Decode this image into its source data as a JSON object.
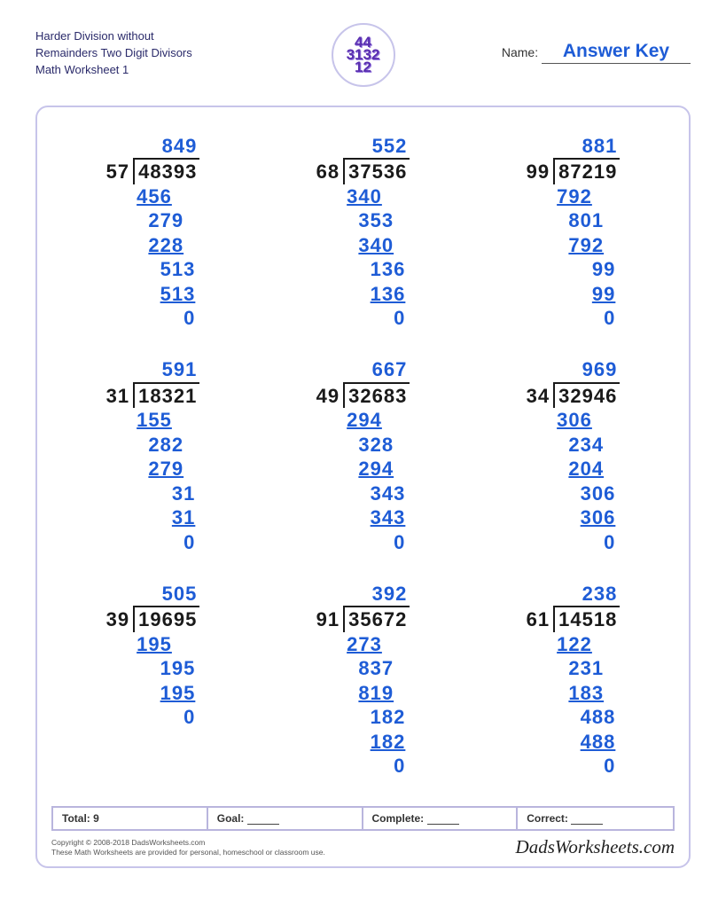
{
  "header": {
    "title_line1": "Harder Division without",
    "title_line2": "Remainders Two Digit Divisors",
    "title_line3": "Math Worksheet 1",
    "name_label": "Name:",
    "name_value": "Answer Key",
    "logo_text": "44\n3132\n12"
  },
  "colors": {
    "quotient": "#1e5cd6",
    "work": "#1e5cd6",
    "dividend": "#1a1a1a",
    "frame_border": "#c7c4ea"
  },
  "typography": {
    "problem_fontsize": 22,
    "problem_fontweight": "bold",
    "header_fontsize": 13
  },
  "problems": [
    {
      "divisor": "57",
      "dividend": "48393",
      "quotient": "849",
      "work": [
        {
          "v": "456",
          "u": true,
          "i": 0
        },
        {
          "v": "279",
          "u": false,
          "i": 1
        },
        {
          "v": "228",
          "u": true,
          "i": 1
        },
        {
          "v": "513",
          "u": false,
          "i": 2
        },
        {
          "v": "513",
          "u": true,
          "i": 2
        },
        {
          "v": "0",
          "u": false,
          "i": 4
        }
      ]
    },
    {
      "divisor": "68",
      "dividend": "37536",
      "quotient": "552",
      "work": [
        {
          "v": "340",
          "u": true,
          "i": 0
        },
        {
          "v": "353",
          "u": false,
          "i": 1
        },
        {
          "v": "340",
          "u": true,
          "i": 1
        },
        {
          "v": "136",
          "u": false,
          "i": 2
        },
        {
          "v": "136",
          "u": true,
          "i": 2
        },
        {
          "v": "0",
          "u": false,
          "i": 4
        }
      ]
    },
    {
      "divisor": "99",
      "dividend": "87219",
      "quotient": "881",
      "work": [
        {
          "v": "792",
          "u": true,
          "i": 0
        },
        {
          "v": "801",
          "u": false,
          "i": 1
        },
        {
          "v": "792",
          "u": true,
          "i": 1
        },
        {
          "v": "99",
          "u": false,
          "i": 3
        },
        {
          "v": "99",
          "u": true,
          "i": 3
        },
        {
          "v": "0",
          "u": false,
          "i": 4
        }
      ]
    },
    {
      "divisor": "31",
      "dividend": "18321",
      "quotient": "591",
      "work": [
        {
          "v": "155",
          "u": true,
          "i": 0
        },
        {
          "v": "282",
          "u": false,
          "i": 1
        },
        {
          "v": "279",
          "u": true,
          "i": 1
        },
        {
          "v": "31",
          "u": false,
          "i": 3
        },
        {
          "v": "31",
          "u": true,
          "i": 3
        },
        {
          "v": "0",
          "u": false,
          "i": 4
        }
      ]
    },
    {
      "divisor": "49",
      "dividend": "32683",
      "quotient": "667",
      "work": [
        {
          "v": "294",
          "u": true,
          "i": 0
        },
        {
          "v": "328",
          "u": false,
          "i": 1
        },
        {
          "v": "294",
          "u": true,
          "i": 1
        },
        {
          "v": "343",
          "u": false,
          "i": 2
        },
        {
          "v": "343",
          "u": true,
          "i": 2
        },
        {
          "v": "0",
          "u": false,
          "i": 4
        }
      ]
    },
    {
      "divisor": "34",
      "dividend": "32946",
      "quotient": "969",
      "work": [
        {
          "v": "306",
          "u": true,
          "i": 0
        },
        {
          "v": "234",
          "u": false,
          "i": 1
        },
        {
          "v": "204",
          "u": true,
          "i": 1
        },
        {
          "v": "306",
          "u": false,
          "i": 2
        },
        {
          "v": "306",
          "u": true,
          "i": 2
        },
        {
          "v": "0",
          "u": false,
          "i": 4
        }
      ]
    },
    {
      "divisor": "39",
      "dividend": "19695",
      "quotient": "505",
      "work": [
        {
          "v": "195",
          "u": true,
          "i": 0
        },
        {
          "v": "195",
          "u": false,
          "i": 2
        },
        {
          "v": "195",
          "u": true,
          "i": 2
        },
        {
          "v": "0",
          "u": false,
          "i": 4
        }
      ]
    },
    {
      "divisor": "91",
      "dividend": "35672",
      "quotient": "392",
      "work": [
        {
          "v": "273",
          "u": true,
          "i": 0
        },
        {
          "v": "837",
          "u": false,
          "i": 1
        },
        {
          "v": "819",
          "u": true,
          "i": 1
        },
        {
          "v": "182",
          "u": false,
          "i": 2
        },
        {
          "v": "182",
          "u": true,
          "i": 2
        },
        {
          "v": "0",
          "u": false,
          "i": 4
        }
      ]
    },
    {
      "divisor": "61",
      "dividend": "14518",
      "quotient": "238",
      "work": [
        {
          "v": "122",
          "u": true,
          "i": 0
        },
        {
          "v": "231",
          "u": false,
          "i": 1
        },
        {
          "v": "183",
          "u": true,
          "i": 1
        },
        {
          "v": "488",
          "u": false,
          "i": 2
        },
        {
          "v": "488",
          "u": true,
          "i": 2
        },
        {
          "v": "0",
          "u": false,
          "i": 4
        }
      ]
    }
  ],
  "stats": {
    "total_label": "Total:",
    "total_value": "9",
    "goal_label": "Goal:",
    "complete_label": "Complete:",
    "correct_label": "Correct:"
  },
  "footer": {
    "copyright1": "Copyright © 2008-2018 DadsWorksheets.com",
    "copyright2": "These Math Worksheets are provided for personal, homeschool or classroom use.",
    "brand": "DadsWorksheets.com"
  }
}
